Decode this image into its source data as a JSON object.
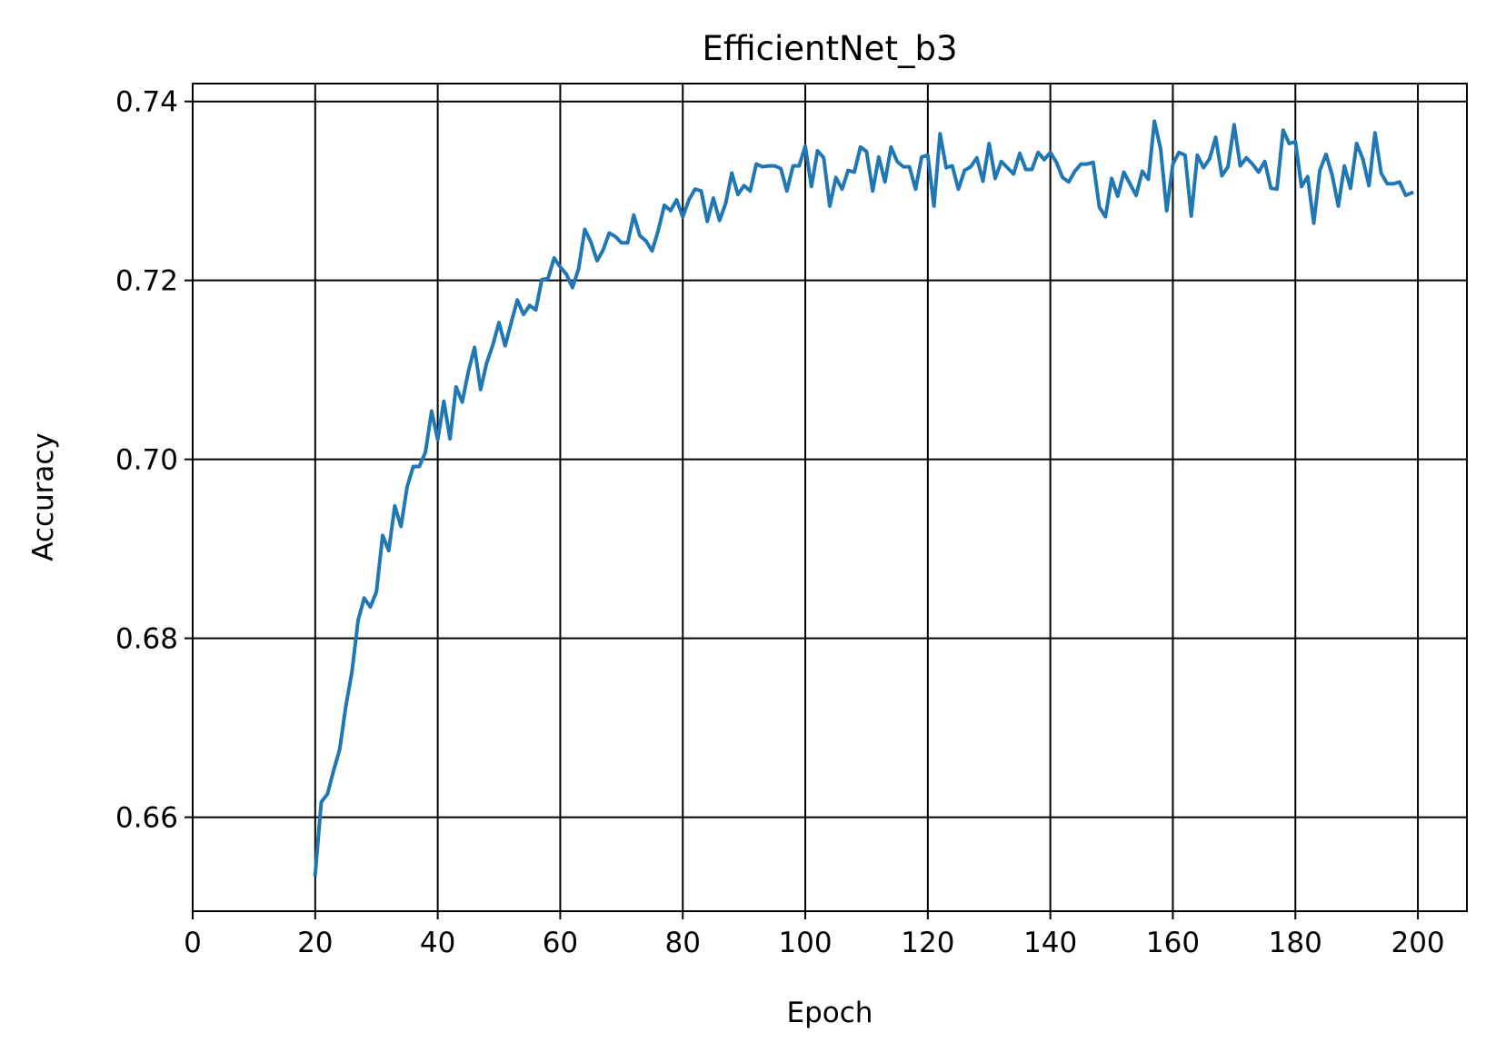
{
  "chart_data": {
    "type": "line",
    "title": "EfficientNet_b3",
    "xlabel": "Epoch",
    "ylabel": "Accuracy",
    "xlim": [
      0,
      208
    ],
    "ylim": [
      0.6495,
      0.742
    ],
    "xticks": [
      0,
      20,
      40,
      60,
      80,
      100,
      120,
      140,
      160,
      180,
      200
    ],
    "xtick_labels": [
      "0",
      "20",
      "40",
      "60",
      "80",
      "100",
      "120",
      "140",
      "160",
      "180",
      "200"
    ],
    "yticks": [
      0.66,
      0.68,
      0.7,
      0.72,
      0.74
    ],
    "ytick_labels": [
      "0.66",
      "0.68",
      "0.70",
      "0.72",
      "0.74"
    ],
    "grid": true,
    "line_color": "#1f77b4",
    "grid_color": "#000000",
    "series": [
      {
        "x": [
          20,
          21,
          22,
          23,
          24,
          25,
          26,
          27,
          28,
          29,
          30,
          31,
          32,
          33,
          34,
          35,
          36,
          37,
          38,
          39,
          40,
          41,
          42,
          43,
          44,
          45,
          46,
          47,
          48,
          49,
          50,
          51,
          52,
          53,
          54,
          55,
          56,
          57,
          58,
          59,
          60,
          61,
          62,
          63,
          64,
          65,
          66,
          67,
          68,
          69,
          70,
          71,
          72,
          73,
          74,
          75,
          76,
          77,
          78,
          79,
          80,
          81,
          82,
          83,
          84,
          85,
          86,
          87,
          88,
          89,
          90,
          91,
          92,
          93,
          94,
          95,
          96,
          97,
          98,
          99,
          100,
          101,
          102,
          103,
          104,
          105,
          106,
          107,
          108,
          109,
          110,
          111,
          112,
          113,
          114,
          115,
          116,
          117,
          118,
          119,
          120,
          121,
          122,
          123,
          124,
          125,
          126,
          127,
          128,
          129,
          130,
          131,
          132,
          133,
          134,
          135,
          136,
          137,
          138,
          139,
          140,
          141,
          142,
          143,
          144,
          145,
          146,
          147,
          148,
          149,
          150,
          151,
          152,
          153,
          154,
          155,
          156,
          157,
          158,
          159,
          160,
          161,
          162,
          163,
          164,
          165,
          166,
          167,
          168,
          169,
          170,
          171,
          172,
          173,
          174,
          175,
          176,
          177,
          178,
          179,
          180,
          181,
          182,
          183,
          184,
          185,
          186,
          187,
          188,
          189,
          190,
          191,
          192,
          193,
          194,
          195,
          196,
          197,
          198,
          199
        ],
        "y": [
          0.6536,
          0.6617,
          0.6626,
          0.6652,
          0.6676,
          0.6724,
          0.6763,
          0.682,
          0.6845,
          0.6835,
          0.6852,
          0.6915,
          0.6898,
          0.6948,
          0.6925,
          0.6969,
          0.6992,
          0.6992,
          0.7008,
          0.7054,
          0.7022,
          0.7065,
          0.7023,
          0.7081,
          0.7064,
          0.7098,
          0.7125,
          0.7078,
          0.7108,
          0.7128,
          0.7153,
          0.7127,
          0.7153,
          0.7178,
          0.7162,
          0.7172,
          0.7167,
          0.7201,
          0.7202,
          0.7225,
          0.7215,
          0.7207,
          0.7192,
          0.7213,
          0.7257,
          0.7243,
          0.7222,
          0.7234,
          0.7253,
          0.7249,
          0.7242,
          0.7242,
          0.7273,
          0.725,
          0.7244,
          0.7233,
          0.7256,
          0.7284,
          0.7278,
          0.729,
          0.7271,
          0.729,
          0.7302,
          0.73,
          0.7266,
          0.7292,
          0.7267,
          0.7286,
          0.732,
          0.7296,
          0.7306,
          0.73,
          0.733,
          0.7327,
          0.7328,
          0.7328,
          0.7325,
          0.73,
          0.7328,
          0.7328,
          0.735,
          0.7305,
          0.7345,
          0.7337,
          0.7283,
          0.7315,
          0.7302,
          0.7323,
          0.7321,
          0.7349,
          0.7344,
          0.73,
          0.7338,
          0.731,
          0.7349,
          0.7333,
          0.7327,
          0.7327,
          0.7302,
          0.7338,
          0.734,
          0.7283,
          0.7364,
          0.7326,
          0.7328,
          0.7302,
          0.7323,
          0.7327,
          0.7337,
          0.7311,
          0.7353,
          0.7314,
          0.7333,
          0.7326,
          0.7319,
          0.7342,
          0.7324,
          0.7324,
          0.7343,
          0.7335,
          0.7343,
          0.7332,
          0.7315,
          0.731,
          0.7322,
          0.733,
          0.733,
          0.7332,
          0.7282,
          0.7271,
          0.7314,
          0.7294,
          0.7321,
          0.7308,
          0.7295,
          0.7322,
          0.7313,
          0.7378,
          0.7347,
          0.7278,
          0.733,
          0.7343,
          0.734,
          0.7272,
          0.734,
          0.7326,
          0.7336,
          0.736,
          0.7317,
          0.7327,
          0.7374,
          0.7328,
          0.7337,
          0.733,
          0.7321,
          0.7333,
          0.7303,
          0.7302,
          0.7368,
          0.7353,
          0.7355,
          0.7305,
          0.7316,
          0.7264,
          0.7323,
          0.7341,
          0.7318,
          0.7283,
          0.7328,
          0.7303,
          0.7353,
          0.7336,
          0.7306,
          0.7365,
          0.732,
          0.7308,
          0.7308,
          0.731,
          0.7295,
          0.7298
        ]
      }
    ]
  }
}
